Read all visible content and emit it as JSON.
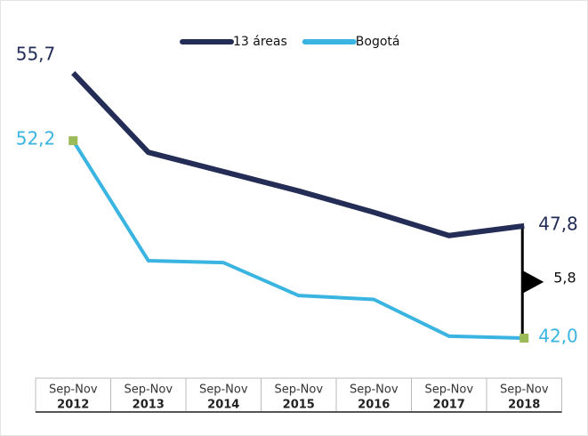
{
  "chart_data": {
    "type": "line",
    "categories": [
      [
        "Sep-Nov",
        "2012"
      ],
      [
        "Sep-Nov",
        "2013"
      ],
      [
        "Sep-Nov",
        "2014"
      ],
      [
        "Sep-Nov",
        "2015"
      ],
      [
        "Sep-Nov",
        "2016"
      ],
      [
        "Sep-Nov",
        "2017"
      ],
      [
        "Sep-Nov",
        "2018"
      ]
    ],
    "series": [
      {
        "name": "13 áreas",
        "color": "#232d56",
        "values": [
          55.7,
          51.6,
          50.6,
          49.6,
          48.5,
          47.3,
          47.8
        ],
        "value_labels": [
          "55,7",
          null,
          null,
          null,
          null,
          null,
          "47,8"
        ]
      },
      {
        "name": "Bogotá",
        "color": "#3ab4e0",
        "values": [
          52.2,
          46.0,
          45.9,
          44.2,
          44.0,
          42.1,
          42.0
        ],
        "value_labels": [
          "52,2",
          null,
          null,
          null,
          null,
          null,
          "42,0"
        ],
        "marker_color": "#9bbb59"
      }
    ],
    "annotation": {
      "value": 5.8,
      "label": "5,8"
    },
    "legend": "top"
  }
}
